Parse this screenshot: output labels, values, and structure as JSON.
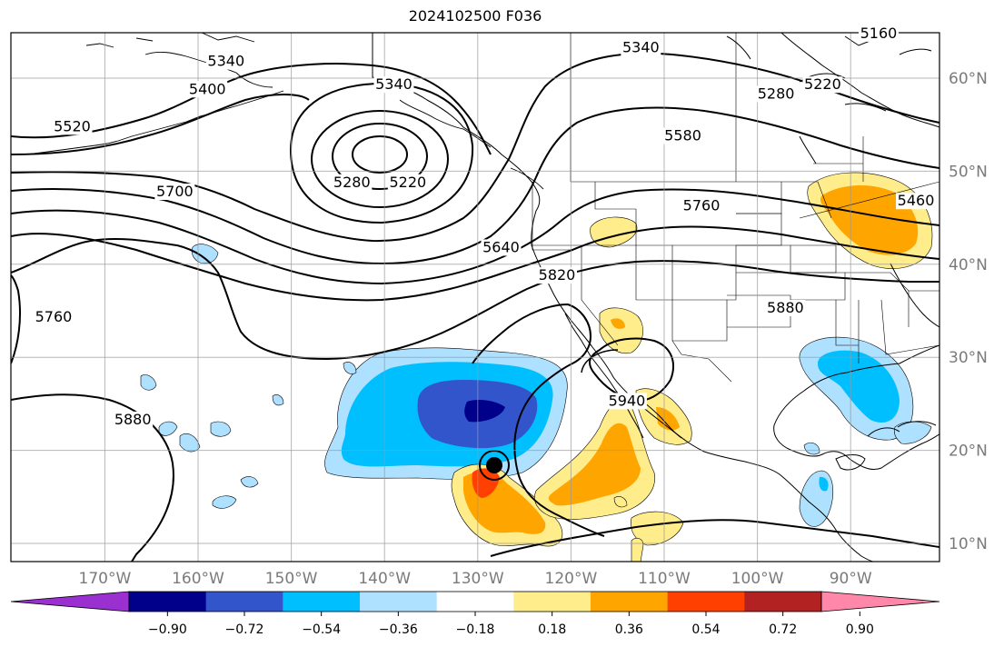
{
  "title": "2024102500 F036",
  "lat_labels": [
    {
      "lat": 60,
      "text": "60°N"
    },
    {
      "lat": 50,
      "text": "50°N"
    },
    {
      "lat": 40,
      "text": "40°N"
    },
    {
      "lat": 30,
      "text": "30°N"
    },
    {
      "lat": 20,
      "text": "20°N"
    },
    {
      "lat": 10,
      "text": "10°N"
    }
  ],
  "lon_labels": [
    {
      "lon": -170,
      "text": "170°W"
    },
    {
      "lon": -160,
      "text": "160°W"
    },
    {
      "lon": -150,
      "text": "150°W"
    },
    {
      "lon": -140,
      "text": "140°W"
    },
    {
      "lon": -130,
      "text": "130°W"
    },
    {
      "lon": -120,
      "text": "120°W"
    },
    {
      "lon": -110,
      "text": "110°W"
    },
    {
      "lon": -100,
      "text": "100°W"
    },
    {
      "lon": -90,
      "text": "90°W"
    }
  ],
  "contour_labels": [
    {
      "text": "5340",
      "lon": -157,
      "lat": 61.5
    },
    {
      "text": "5400",
      "lon": -159,
      "lat": 58.5
    },
    {
      "text": "5340",
      "lon": -139,
      "lat": 59
    },
    {
      "text": "5520",
      "lon": -173.5,
      "lat": 54.5
    },
    {
      "text": "5700",
      "lon": -162.5,
      "lat": 47.5
    },
    {
      "text": "5280",
      "lon": -143.5,
      "lat": 48.5
    },
    {
      "text": "5220",
      "lon": -137.5,
      "lat": 48.5
    },
    {
      "text": "5640",
      "lon": -127.5,
      "lat": 41.5
    },
    {
      "text": "5820",
      "lon": -121.5,
      "lat": 38.5
    },
    {
      "text": "5760",
      "lon": -106,
      "lat": 46
    },
    {
      "text": "5880",
      "lon": -97,
      "lat": 35
    },
    {
      "text": "5580",
      "lon": -108,
      "lat": 53.5
    },
    {
      "text": "5340",
      "lon": -112.5,
      "lat": 63
    },
    {
      "text": "5280",
      "lon": -98,
      "lat": 58
    },
    {
      "text": "5220",
      "lon": -93,
      "lat": 59
    },
    {
      "text": "5160",
      "lon": -87,
      "lat": 64.5
    },
    {
      "text": "5460",
      "lon": -83,
      "lat": 46.5
    },
    {
      "text": "5760",
      "lon": -175.5,
      "lat": 34
    },
    {
      "text": "5880",
      "lon": -167,
      "lat": 23
    },
    {
      "text": "5940",
      "lon": -114,
      "lat": 25
    }
  ],
  "colorbar": {
    "tick_labels": [
      "−0.90",
      "−0.72",
      "−0.54",
      "−0.36",
      "−0.18",
      "0.18",
      "0.36",
      "0.54",
      "0.72",
      "0.90"
    ],
    "colors": [
      "#9b30d0",
      "#00008b",
      "#3355cc",
      "#00bfff",
      "#aee0ff",
      "#ffffff",
      "#ffec8b",
      "#ffa500",
      "#ff4000",
      "#b22222",
      "#ff88aa"
    ]
  }
}
